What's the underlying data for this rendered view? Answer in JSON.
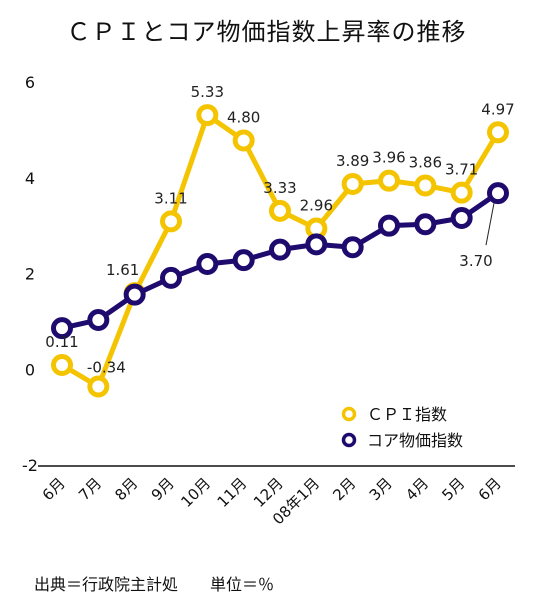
{
  "chart_data": {
    "type": "line",
    "title": "ＣＰＩとコア物価指数上昇率の推移",
    "categories": [
      "6月",
      "7月",
      "8月",
      "9月",
      "10月",
      "11月",
      "12月",
      "08年1月",
      "2月",
      "3月",
      "4月",
      "5月",
      "6月"
    ],
    "ylim": [
      -2,
      6
    ],
    "yticks": [
      "-2",
      "0",
      "2",
      "4",
      "6"
    ],
    "grid": false,
    "legend_position": "bottom-right",
    "series": [
      {
        "name": "ＣＰＩ指数",
        "color": "#F5C400",
        "values": [
          0.11,
          -0.34,
          1.61,
          3.11,
          5.33,
          4.8,
          3.33,
          2.96,
          3.89,
          3.96,
          3.86,
          3.71,
          4.97
        ],
        "labels": [
          "0.11",
          "-0.34",
          "1.61",
          "3.11",
          "5.33",
          "4.80",
          "3.33",
          "2.96",
          "3.89",
          "3.96",
          "3.86",
          "3.71",
          "4.97"
        ]
      },
      {
        "name": "コア物価指数",
        "color": "#1F0A6E",
        "values": [
          0.88,
          1.05,
          1.58,
          1.93,
          2.22,
          2.3,
          2.52,
          2.63,
          2.57,
          3.02,
          3.05,
          3.18,
          3.7
        ],
        "labels": [
          "",
          "",
          "",
          "",
          "",
          "",
          "",
          "",
          "",
          "",
          "",
          "",
          "3.70"
        ]
      }
    ]
  },
  "footnote": "出典＝行政院主計処　　単位＝％"
}
